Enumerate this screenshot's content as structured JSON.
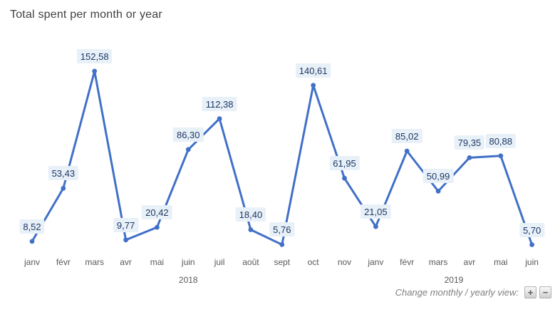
{
  "chart_data": {
    "type": "line",
    "title": "Total spent per month or year",
    "x": [
      "janv",
      "févr",
      "mars",
      "avr",
      "mai",
      "juin",
      "juil",
      "août",
      "sept",
      "oct",
      "nov",
      "janv",
      "févr",
      "mars",
      "avr",
      "mai",
      "juin"
    ],
    "values": [
      8.52,
      53.43,
      152.58,
      9.77,
      20.42,
      86.3,
      112.38,
      18.4,
      5.76,
      140.61,
      61.95,
      21.05,
      85.02,
      50.99,
      79.35,
      80.88,
      5.7
    ],
    "data_labels": [
      "8,52",
      "53,43",
      "152,58",
      "9,77",
      "20,42",
      "86,30",
      "112,38",
      "18,40",
      "5,76",
      "140,61",
      "61,95",
      "21,05",
      "85,02",
      "50,99",
      "79,35",
      "80,88",
      "5,70"
    ],
    "year_groups": [
      {
        "label": "2018",
        "start_index": 0,
        "end_index": 10
      },
      {
        "label": "2019",
        "start_index": 11,
        "end_index": 16
      }
    ],
    "ylim": [
      0,
      160
    ],
    "grid": false,
    "legend": false,
    "line_color": "#4170c8",
    "marker_color": "#4170c8",
    "label_bg_color": "#e8f0f8",
    "label_text_color": "#1f3864"
  },
  "footer": {
    "caption": "Change monthly / yearly view:",
    "zoom_in_label": "+",
    "zoom_out_label": "−"
  }
}
